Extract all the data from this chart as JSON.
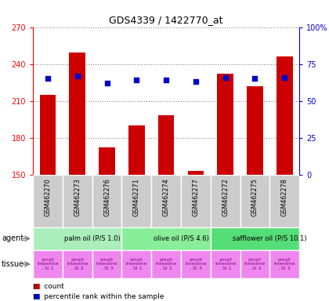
{
  "title": "GDS4339 / 1422770_at",
  "samples": [
    "GSM462270",
    "GSM462273",
    "GSM462276",
    "GSM462271",
    "GSM462274",
    "GSM462277",
    "GSM462272",
    "GSM462275",
    "GSM462278"
  ],
  "counts": [
    215,
    249,
    172,
    190,
    198,
    153,
    232,
    222,
    246
  ],
  "percentiles": [
    65,
    67,
    62,
    64,
    64,
    63,
    66,
    65,
    66
  ],
  "ymin": 150,
  "ymax": 270,
  "yticks": [
    150,
    180,
    210,
    240,
    270
  ],
  "y2min": 0,
  "y2max": 100,
  "y2ticks": [
    0,
    25,
    50,
    75,
    100
  ],
  "y2ticklabels": [
    "0",
    "25",
    "50",
    "75",
    "100%"
  ],
  "bar_color": "#cc0000",
  "dot_color": "#0000cc",
  "grid_color": "#888888",
  "agent_groups": [
    {
      "label": "palm oil (P/S 1.0)",
      "start": 0,
      "end": 3,
      "color": "#aaeebb"
    },
    {
      "label": "olive oil (P/S 4.6)",
      "start": 3,
      "end": 6,
      "color": "#88ee99"
    },
    {
      "label": "safflower oil (P/S 10.1)",
      "start": 6,
      "end": 9,
      "color": "#55dd77"
    }
  ],
  "tissue_labels": [
    "small\nintestine\n, SI 1",
    "small\nintestine\n, SI 2",
    "small\nintestine\n, SI 3",
    "small\nintestine\n, SI 1",
    "small\nintestine\n, SI 2",
    "small\nintestine\n, SI 3",
    "small\nintestine\n, SI 1",
    "small\nintestine\n, SI 2",
    "small\nintestine\n, SI 3"
  ],
  "tissue_color": "#ee88ee",
  "tissue_text_color": "#880088",
  "agent_label": "agent",
  "tissue_label": "tissue",
  "bg_color": "#ffffff",
  "sample_bg_color": "#cccccc",
  "legend_count_color": "#cc0000",
  "legend_pct_color": "#0000cc",
  "bar_width": 0.55
}
